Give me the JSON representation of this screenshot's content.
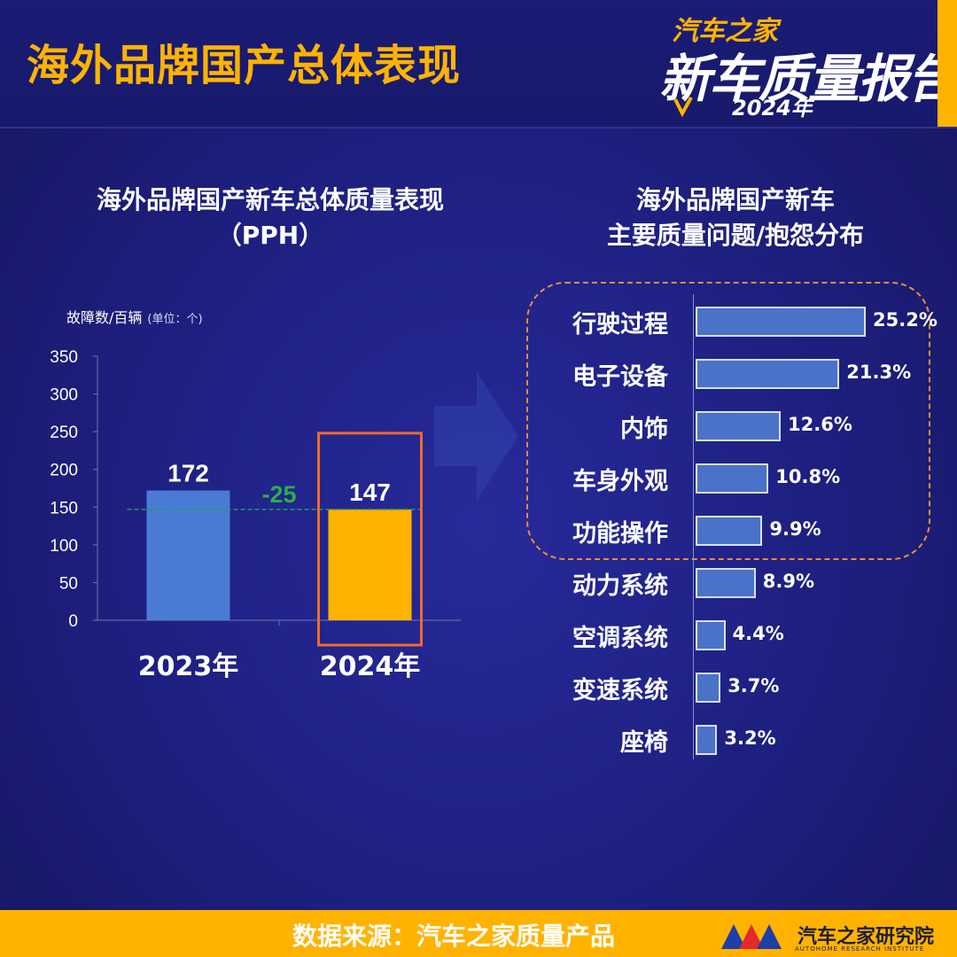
{
  "header": {
    "title": "海外品牌国产总体表现",
    "logo_brand": "汽车之家",
    "logo_main": "新车质量报告",
    "logo_year": "2024年"
  },
  "left_chart": {
    "title_line1": "海外品牌国产新车总体质量表现",
    "title_line2": "（PPH）",
    "axis_unit": "故障数/百辆",
    "axis_unit_small": "(单位：个)",
    "difference_label": "-25"
  },
  "right_chart": {
    "title_line1": "海外品牌国产新车",
    "title_line2": "主要质量问题/抱怨分布"
  },
  "footer": {
    "source": "数据来源：汽车之家质量产品",
    "org": "汽车之家研究院",
    "org_sub": "AUTOHOME RESEARCH INSTITUTE"
  },
  "colors": {
    "accent": "#ffb300",
    "bar_2023": "#4a7bd4",
    "bar_2024": "#ffb300",
    "hbar": "#4a72c9",
    "highlight_border": "#f06a2a",
    "difference": "#25b04b"
  },
  "chart_data": [
    {
      "type": "bar",
      "title": "海外品牌国产新车总体质量表现（PPH）",
      "ylabel": "故障数/百辆",
      "categories": [
        "2023年",
        "2024年"
      ],
      "values": [
        172,
        147
      ],
      "ylim": [
        0,
        350
      ],
      "yticks": [
        0,
        50,
        100,
        150,
        200,
        250,
        300,
        350
      ],
      "annotation": "-25",
      "highlighted_category": "2024年",
      "grid": false
    },
    {
      "type": "bar",
      "orientation": "horizontal",
      "title": "海外品牌国产新车主要质量问题/抱怨分布",
      "categories": [
        "行驶过程",
        "电子设备",
        "内饰",
        "车身外观",
        "功能操作",
        "动力系统",
        "空调系统",
        "变速系统",
        "座椅"
      ],
      "values": [
        25.2,
        21.3,
        12.6,
        10.8,
        9.9,
        8.9,
        4.4,
        3.7,
        3.2
      ],
      "value_labels": [
        "25.2%",
        "21.3%",
        "12.6%",
        "10.8%",
        "9.9%",
        "8.9%",
        "4.4%",
        "3.7%",
        "3.2%"
      ],
      "unit": "%",
      "highlighted_top_n": 5
    }
  ]
}
